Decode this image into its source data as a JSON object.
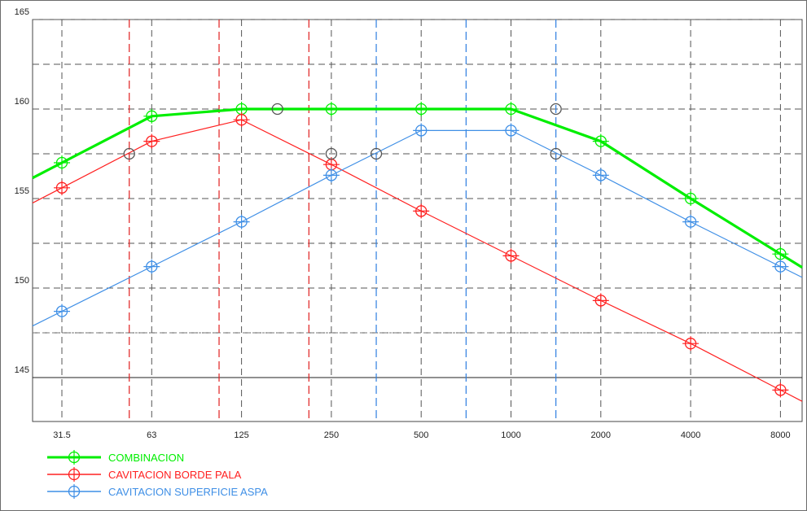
{
  "chart_data": {
    "type": "line",
    "x_axis_scale": "log2",
    "x_ticks": [
      "31.5",
      "63",
      "125",
      "250",
      "500",
      "1000",
      "2000",
      "4000",
      "8000"
    ],
    "y_ticks": [
      "145",
      "150",
      "155",
      "160",
      "165"
    ],
    "ylim": [
      142.8,
      165
    ],
    "grid": "dashed",
    "legend_position": "bottom-left",
    "series": [
      {
        "name": "COMBINACION",
        "color": "#00ee00",
        "values": [
          157.0,
          159.6,
          160.0,
          160.0,
          160.0,
          160.0,
          158.2,
          155.0,
          151.9
        ]
      },
      {
        "name": "CAVITACION BORDE PALA",
        "color": "#ff2020",
        "values": [
          155.6,
          158.2,
          159.4,
          156.9,
          154.3,
          151.8,
          149.3,
          146.9,
          144.3
        ]
      },
      {
        "name": "CAVITACION SUPERFICIE ASPA",
        "color": "#3f8fe6",
        "values": [
          148.7,
          151.2,
          153.7,
          156.3,
          158.8,
          158.8,
          156.3,
          153.7,
          151.2
        ]
      }
    ],
    "peak_markers": [
      {
        "x_index": 2.4,
        "value": 160.0,
        "color": "#555555"
      },
      {
        "x_index": 5.5,
        "value": 160.0,
        "color": "#555555"
      },
      {
        "x_index": 0.75,
        "value": 157.5,
        "color": "#555555"
      },
      {
        "x_index": 3.0,
        "value": 157.5,
        "color": "#555555"
      },
      {
        "x_index": 3.5,
        "value": 157.5,
        "color": "#555555"
      },
      {
        "x_index": 5.5,
        "value": 157.5,
        "color": "#555555"
      }
    ],
    "red_vlines_x_index": [
      0.75,
      1.75,
      2.75
    ],
    "blue_vlines_x_index": [
      3.5,
      4.5,
      5.5
    ]
  }
}
